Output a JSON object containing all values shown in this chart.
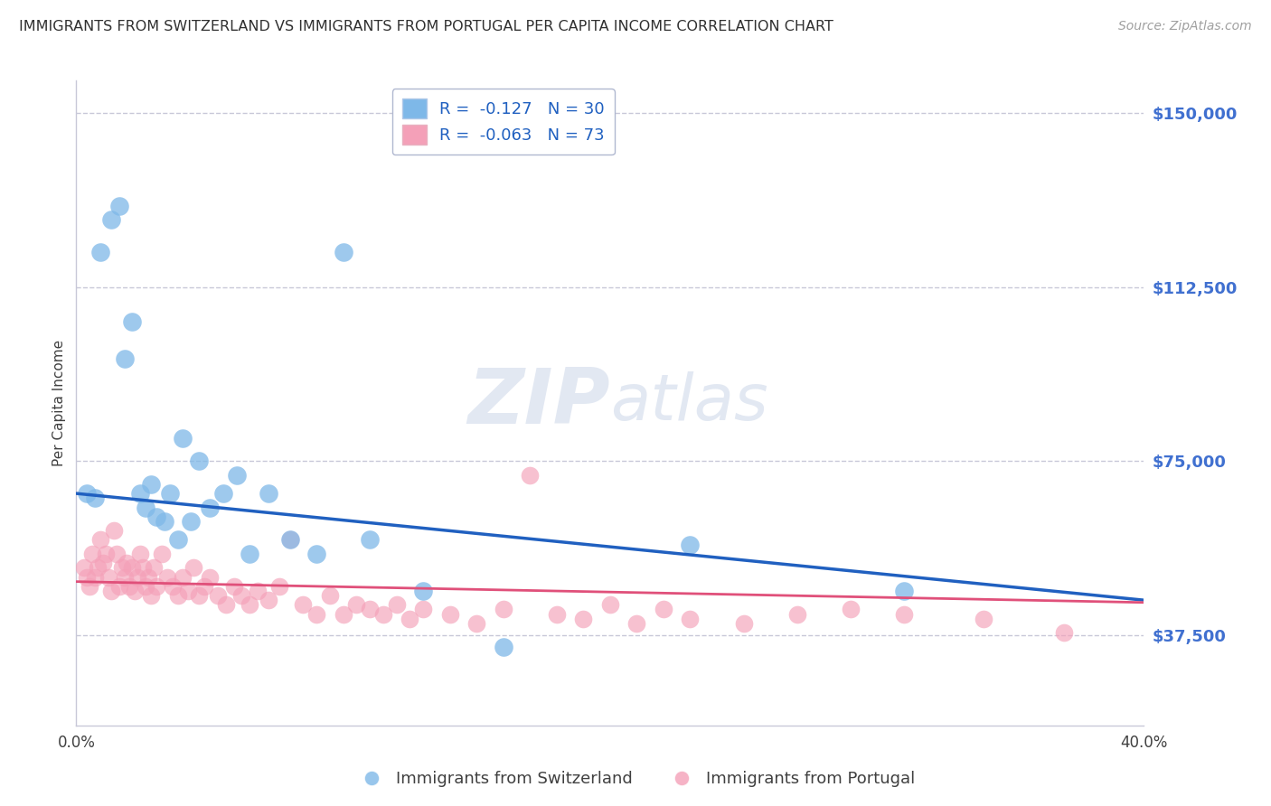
{
  "title": "IMMIGRANTS FROM SWITZERLAND VS IMMIGRANTS FROM PORTUGAL PER CAPITA INCOME CORRELATION CHART",
  "source": "Source: ZipAtlas.com",
  "ylabel": "Per Capita Income",
  "xlabel": "",
  "xlim": [
    0.0,
    0.4
  ],
  "ylim": [
    18000,
    157000
  ],
  "yticks": [
    37500,
    75000,
    112500,
    150000
  ],
  "ytick_labels": [
    "$37,500",
    "$75,000",
    "$112,500",
    "$150,000"
  ],
  "xticks": [
    0.0,
    0.05,
    0.1,
    0.15,
    0.2,
    0.25,
    0.3,
    0.35,
    0.4
  ],
  "xtick_labels": [
    "0.0%",
    "",
    "",
    "",
    "",
    "",
    "",
    "",
    "40.0%"
  ],
  "legend_1_label": "R =  -0.127   N = 30",
  "legend_2_label": "R =  -0.063   N = 73",
  "legend_1_series": "Immigrants from Switzerland",
  "legend_2_series": "Immigrants from Portugal",
  "color_swiss": "#7eb8e8",
  "color_portugal": "#f4a0b8",
  "color_swiss_line": "#2060c0",
  "color_portugal_line": "#e0507a",
  "color_grid": "#c8c8d8",
  "color_title": "#303030",
  "color_ytick_labels": "#4070d0",
  "color_source": "#a0a0a0",
  "background_color": "#ffffff",
  "swiss_x": [
    0.004,
    0.007,
    0.009,
    0.013,
    0.016,
    0.018,
    0.021,
    0.024,
    0.026,
    0.028,
    0.03,
    0.033,
    0.035,
    0.038,
    0.04,
    0.043,
    0.046,
    0.05,
    0.055,
    0.06,
    0.065,
    0.072,
    0.08,
    0.09,
    0.1,
    0.11,
    0.13,
    0.16,
    0.23,
    0.31
  ],
  "swiss_y": [
    68000,
    67000,
    120000,
    127000,
    130000,
    97000,
    105000,
    68000,
    65000,
    70000,
    63000,
    62000,
    68000,
    58000,
    80000,
    62000,
    75000,
    65000,
    68000,
    72000,
    55000,
    68000,
    58000,
    55000,
    120000,
    58000,
    47000,
    35000,
    57000,
    47000
  ],
  "portugal_x": [
    0.003,
    0.004,
    0.005,
    0.006,
    0.007,
    0.008,
    0.009,
    0.01,
    0.011,
    0.012,
    0.013,
    0.014,
    0.015,
    0.016,
    0.017,
    0.018,
    0.019,
    0.02,
    0.021,
    0.022,
    0.023,
    0.024,
    0.025,
    0.026,
    0.027,
    0.028,
    0.029,
    0.03,
    0.032,
    0.034,
    0.036,
    0.038,
    0.04,
    0.042,
    0.044,
    0.046,
    0.048,
    0.05,
    0.053,
    0.056,
    0.059,
    0.062,
    0.065,
    0.068,
    0.072,
    0.076,
    0.08,
    0.085,
    0.09,
    0.095,
    0.1,
    0.105,
    0.11,
    0.115,
    0.12,
    0.125,
    0.13,
    0.14,
    0.15,
    0.16,
    0.17,
    0.18,
    0.19,
    0.2,
    0.21,
    0.22,
    0.23,
    0.25,
    0.27,
    0.29,
    0.31,
    0.34,
    0.37
  ],
  "portugal_y": [
    52000,
    50000,
    48000,
    55000,
    50000,
    52000,
    58000,
    53000,
    55000,
    50000,
    47000,
    60000,
    55000,
    48000,
    52000,
    50000,
    53000,
    48000,
    52000,
    47000,
    50000,
    55000,
    52000,
    48000,
    50000,
    46000,
    52000,
    48000,
    55000,
    50000,
    48000,
    46000,
    50000,
    47000,
    52000,
    46000,
    48000,
    50000,
    46000,
    44000,
    48000,
    46000,
    44000,
    47000,
    45000,
    48000,
    58000,
    44000,
    42000,
    46000,
    42000,
    44000,
    43000,
    42000,
    44000,
    41000,
    43000,
    42000,
    40000,
    43000,
    72000,
    42000,
    41000,
    44000,
    40000,
    43000,
    41000,
    40000,
    42000,
    43000,
    42000,
    41000,
    38000
  ]
}
